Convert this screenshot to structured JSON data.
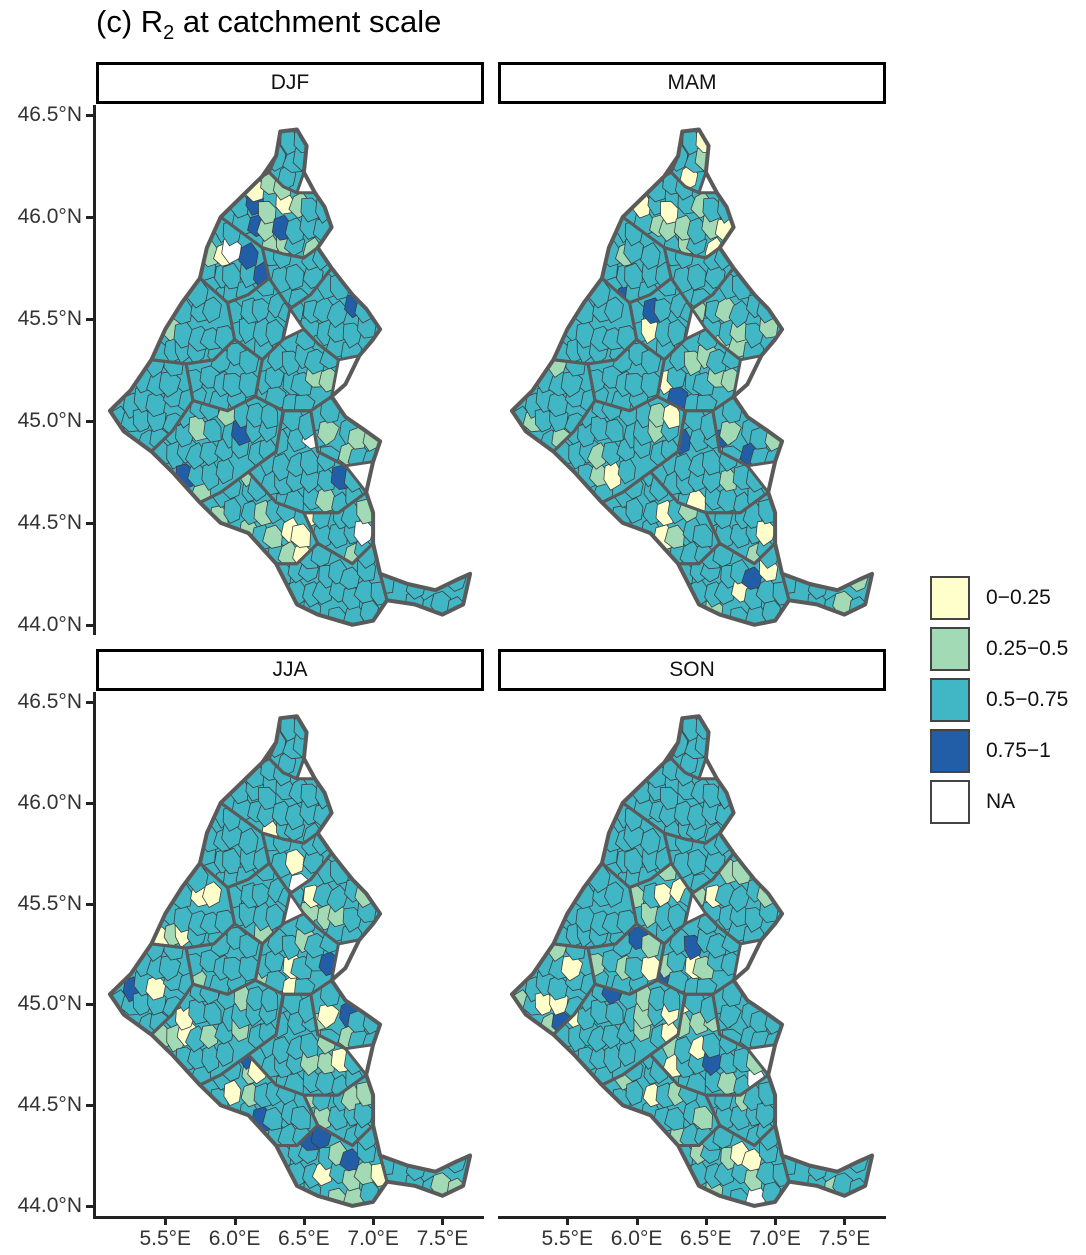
{
  "figure": {
    "title_prefix": "(c) R",
    "title_sub": "2",
    "title_suffix": " at catchment scale"
  },
  "colors": {
    "0-0.25": "#ffffcc",
    "0.25-0.5": "#a1dab4",
    "0.5-0.75": "#41b6c4",
    "0.75-1": "#225ea8",
    "NA": "#ffffff",
    "boundary": "#5a5a5a"
  },
  "chart_data": {
    "type": "choropleth",
    "facets": [
      "DJF",
      "MAM",
      "JJA",
      "SON"
    ],
    "y_ticks": [
      "46.5°N",
      "46.0°N",
      "45.5°N",
      "45.0°N",
      "44.5°N",
      "44.0°N"
    ],
    "y_tick_values": [
      46.5,
      46.0,
      45.5,
      45.0,
      44.5,
      44.0
    ],
    "x_ticks": [
      "5.5°E",
      "6.0°E",
      "6.5°E",
      "7.0°E",
      "7.5°E"
    ],
    "x_tick_values": [
      5.5,
      6.0,
      6.5,
      7.0,
      7.5
    ],
    "xlim": [
      5.0,
      7.8
    ],
    "ylim": [
      43.95,
      46.55
    ],
    "legend": [
      {
        "label": "0−0.25",
        "key": "0-0.25"
      },
      {
        "label": "0.25−0.5",
        "key": "0.25-0.5"
      },
      {
        "label": "0.5−0.75",
        "key": "0.5-0.75"
      },
      {
        "label": "0.75−1",
        "key": "0.75-1"
      },
      {
        "label": "NA",
        "key": "NA"
      }
    ],
    "region_outline": [
      [
        6.33,
        46.42
      ],
      [
        6.45,
        46.43
      ],
      [
        6.52,
        46.35
      ],
      [
        6.5,
        46.22
      ],
      [
        6.58,
        46.12
      ],
      [
        6.65,
        46.05
      ],
      [
        6.7,
        45.95
      ],
      [
        6.6,
        45.85
      ],
      [
        6.7,
        45.75
      ],
      [
        6.78,
        45.68
      ],
      [
        6.85,
        45.62
      ],
      [
        6.95,
        45.55
      ],
      [
        7.05,
        45.45
      ],
      [
        7.0,
        45.4
      ],
      [
        6.9,
        45.32
      ],
      [
        6.8,
        45.18
      ],
      [
        6.7,
        45.12
      ],
      [
        6.8,
        45.02
      ],
      [
        6.95,
        44.95
      ],
      [
        7.05,
        44.9
      ],
      [
        7.0,
        44.8
      ],
      [
        6.95,
        44.65
      ],
      [
        7.0,
        44.55
      ],
      [
        7.0,
        44.4
      ],
      [
        7.05,
        44.25
      ],
      [
        7.25,
        44.2
      ],
      [
        7.45,
        44.17
      ],
      [
        7.6,
        44.22
      ],
      [
        7.7,
        44.25
      ],
      [
        7.65,
        44.1
      ],
      [
        7.5,
        44.05
      ],
      [
        7.3,
        44.1
      ],
      [
        7.1,
        44.12
      ],
      [
        7.0,
        44.02
      ],
      [
        6.85,
        44.0
      ],
      [
        6.6,
        44.05
      ],
      [
        6.45,
        44.1
      ],
      [
        6.3,
        44.3
      ],
      [
        6.1,
        44.45
      ],
      [
        5.9,
        44.5
      ],
      [
        5.75,
        44.6
      ],
      [
        5.55,
        44.75
      ],
      [
        5.4,
        44.85
      ],
      [
        5.2,
        44.95
      ],
      [
        5.1,
        45.05
      ],
      [
        5.25,
        45.15
      ],
      [
        5.4,
        45.3
      ],
      [
        5.5,
        45.45
      ],
      [
        5.62,
        45.58
      ],
      [
        5.75,
        45.7
      ],
      [
        5.8,
        45.85
      ],
      [
        5.9,
        46.0
      ],
      [
        6.05,
        46.1
      ],
      [
        6.2,
        46.2
      ],
      [
        6.3,
        46.3
      ],
      [
        6.33,
        46.42
      ]
    ],
    "regions": [
      {
        "id": "upper-north",
        "poly": [
          [
            6.33,
            46.42
          ],
          [
            6.45,
            46.43
          ],
          [
            6.52,
            46.35
          ],
          [
            6.5,
            46.22
          ],
          [
            6.45,
            46.12
          ],
          [
            6.35,
            46.15
          ],
          [
            6.25,
            46.22
          ],
          [
            6.3,
            46.3
          ]
        ]
      },
      {
        "id": "north-basin",
        "poly": [
          [
            6.05,
            46.1
          ],
          [
            6.2,
            46.2
          ],
          [
            6.25,
            46.22
          ],
          [
            6.35,
            46.15
          ],
          [
            6.45,
            46.12
          ],
          [
            6.58,
            46.12
          ],
          [
            6.65,
            46.05
          ],
          [
            6.7,
            45.95
          ],
          [
            6.6,
            45.85
          ],
          [
            6.5,
            45.8
          ],
          [
            6.35,
            45.82
          ],
          [
            6.2,
            45.85
          ],
          [
            6.0,
            45.95
          ],
          [
            5.9,
            46.0
          ]
        ]
      },
      {
        "id": "northwest",
        "poly": [
          [
            5.8,
            45.85
          ],
          [
            5.9,
            46.0
          ],
          [
            6.0,
            45.95
          ],
          [
            6.2,
            45.85
          ],
          [
            6.25,
            45.7
          ],
          [
            6.1,
            45.62
          ],
          [
            5.95,
            45.58
          ],
          [
            5.75,
            45.7
          ]
        ]
      },
      {
        "id": "west-mid",
        "poly": [
          [
            5.5,
            45.45
          ],
          [
            5.62,
            45.58
          ],
          [
            5.75,
            45.7
          ],
          [
            5.95,
            45.58
          ],
          [
            6.0,
            45.4
          ],
          [
            5.85,
            45.3
          ],
          [
            5.65,
            45.28
          ],
          [
            5.4,
            45.3
          ]
        ]
      },
      {
        "id": "center-north",
        "poly": [
          [
            6.2,
            45.85
          ],
          [
            6.35,
            45.82
          ],
          [
            6.5,
            45.8
          ],
          [
            6.6,
            45.85
          ],
          [
            6.7,
            45.75
          ],
          [
            6.55,
            45.62
          ],
          [
            6.4,
            45.55
          ],
          [
            6.25,
            45.7
          ]
        ]
      },
      {
        "id": "isere-central",
        "poly": [
          [
            5.95,
            45.58
          ],
          [
            6.1,
            45.62
          ],
          [
            6.25,
            45.7
          ],
          [
            6.4,
            45.55
          ],
          [
            6.35,
            45.4
          ],
          [
            6.2,
            45.3
          ],
          [
            6.0,
            45.4
          ]
        ]
      },
      {
        "id": "east-loop",
        "poly": [
          [
            6.55,
            45.62
          ],
          [
            6.7,
            45.75
          ],
          [
            6.78,
            45.68
          ],
          [
            6.85,
            45.62
          ],
          [
            6.95,
            45.55
          ],
          [
            7.05,
            45.45
          ],
          [
            7.0,
            45.4
          ],
          [
            6.9,
            45.32
          ],
          [
            6.75,
            45.3
          ],
          [
            6.6,
            45.38
          ],
          [
            6.5,
            45.45
          ],
          [
            6.4,
            45.55
          ]
        ]
      },
      {
        "id": "west-low",
        "poly": [
          [
            5.1,
            45.05
          ],
          [
            5.25,
            45.15
          ],
          [
            5.4,
            45.3
          ],
          [
            5.65,
            45.28
          ],
          [
            5.7,
            45.1
          ],
          [
            5.55,
            44.95
          ],
          [
            5.4,
            44.85
          ],
          [
            5.2,
            44.95
          ]
        ]
      },
      {
        "id": "mid-west",
        "poly": [
          [
            5.65,
            45.28
          ],
          [
            5.85,
            45.3
          ],
          [
            6.0,
            45.4
          ],
          [
            6.2,
            45.3
          ],
          [
            6.15,
            45.12
          ],
          [
            5.95,
            45.05
          ],
          [
            5.7,
            45.1
          ]
        ]
      },
      {
        "id": "mid-center",
        "poly": [
          [
            6.2,
            45.3
          ],
          [
            6.35,
            45.4
          ],
          [
            6.5,
            45.45
          ],
          [
            6.6,
            45.38
          ],
          [
            6.75,
            45.3
          ],
          [
            6.7,
            45.12
          ],
          [
            6.55,
            45.05
          ],
          [
            6.35,
            45.05
          ],
          [
            6.15,
            45.12
          ]
        ]
      },
      {
        "id": "mid-east",
        "poly": [
          [
            6.7,
            45.12
          ],
          [
            6.8,
            45.02
          ],
          [
            6.95,
            44.95
          ],
          [
            7.05,
            44.9
          ],
          [
            7.0,
            44.8
          ],
          [
            6.8,
            44.78
          ],
          [
            6.6,
            44.85
          ],
          [
            6.55,
            45.05
          ]
        ]
      },
      {
        "id": "south-west",
        "poly": [
          [
            5.55,
            44.95
          ],
          [
            5.7,
            45.1
          ],
          [
            5.95,
            45.05
          ],
          [
            6.15,
            45.12
          ],
          [
            6.35,
            45.05
          ],
          [
            6.3,
            44.85
          ],
          [
            6.1,
            44.75
          ],
          [
            5.9,
            44.65
          ],
          [
            5.75,
            44.6
          ],
          [
            5.55,
            44.75
          ],
          [
            5.4,
            44.85
          ]
        ]
      },
      {
        "id": "south-center",
        "poly": [
          [
            6.3,
            44.85
          ],
          [
            6.35,
            45.05
          ],
          [
            6.55,
            45.05
          ],
          [
            6.6,
            44.85
          ],
          [
            6.8,
            44.78
          ],
          [
            6.95,
            44.65
          ],
          [
            6.75,
            44.55
          ],
          [
            6.5,
            44.55
          ],
          [
            6.3,
            44.6
          ],
          [
            6.1,
            44.75
          ]
        ]
      },
      {
        "id": "durance",
        "poly": [
          [
            5.75,
            44.6
          ],
          [
            5.9,
            44.65
          ],
          [
            6.1,
            44.75
          ],
          [
            6.3,
            44.6
          ],
          [
            6.5,
            44.55
          ],
          [
            6.6,
            44.4
          ],
          [
            6.45,
            44.3
          ],
          [
            6.3,
            44.3
          ],
          [
            6.1,
            44.45
          ],
          [
            5.9,
            44.5
          ]
        ]
      },
      {
        "id": "south-east",
        "poly": [
          [
            6.5,
            44.55
          ],
          [
            6.75,
            44.55
          ],
          [
            6.95,
            44.65
          ],
          [
            7.0,
            44.55
          ],
          [
            7.0,
            44.4
          ],
          [
            6.85,
            44.3
          ],
          [
            6.6,
            44.4
          ]
        ]
      },
      {
        "id": "var",
        "poly": [
          [
            6.45,
            44.3
          ],
          [
            6.6,
            44.4
          ],
          [
            6.85,
            44.3
          ],
          [
            7.0,
            44.4
          ],
          [
            7.05,
            44.25
          ],
          [
            7.1,
            44.12
          ],
          [
            7.0,
            44.02
          ],
          [
            6.85,
            44.0
          ],
          [
            6.6,
            44.05
          ],
          [
            6.45,
            44.1
          ],
          [
            6.3,
            44.3
          ]
        ]
      },
      {
        "id": "coast-east",
        "poly": [
          [
            7.05,
            44.25
          ],
          [
            7.25,
            44.2
          ],
          [
            7.45,
            44.17
          ],
          [
            7.6,
            44.22
          ],
          [
            7.7,
            44.25
          ],
          [
            7.65,
            44.1
          ],
          [
            7.5,
            44.05
          ],
          [
            7.3,
            44.1
          ],
          [
            7.1,
            44.12
          ]
        ]
      }
    ],
    "panels": {
      "DJF": {
        "default": "0.5-0.75",
        "counts": {
          "0-0.25": 7,
          "0.25-0.5": 28,
          "0.75-1": 9,
          "NA": 3
        }
      },
      "MAM": {
        "default": "0.5-0.75",
        "counts": {
          "0-0.25": 16,
          "0.25-0.5": 34,
          "0.75-1": 7,
          "NA": 0
        }
      },
      "JJA": {
        "default": "0.5-0.75",
        "counts": {
          "0-0.25": 18,
          "0.25-0.5": 32,
          "0.75-1": 8,
          "NA": 1
        }
      },
      "SON": {
        "default": "0.5-0.75",
        "counts": {
          "0-0.25": 17,
          "0.25-0.5": 34,
          "0.75-1": 6,
          "NA": 2
        }
      }
    }
  }
}
